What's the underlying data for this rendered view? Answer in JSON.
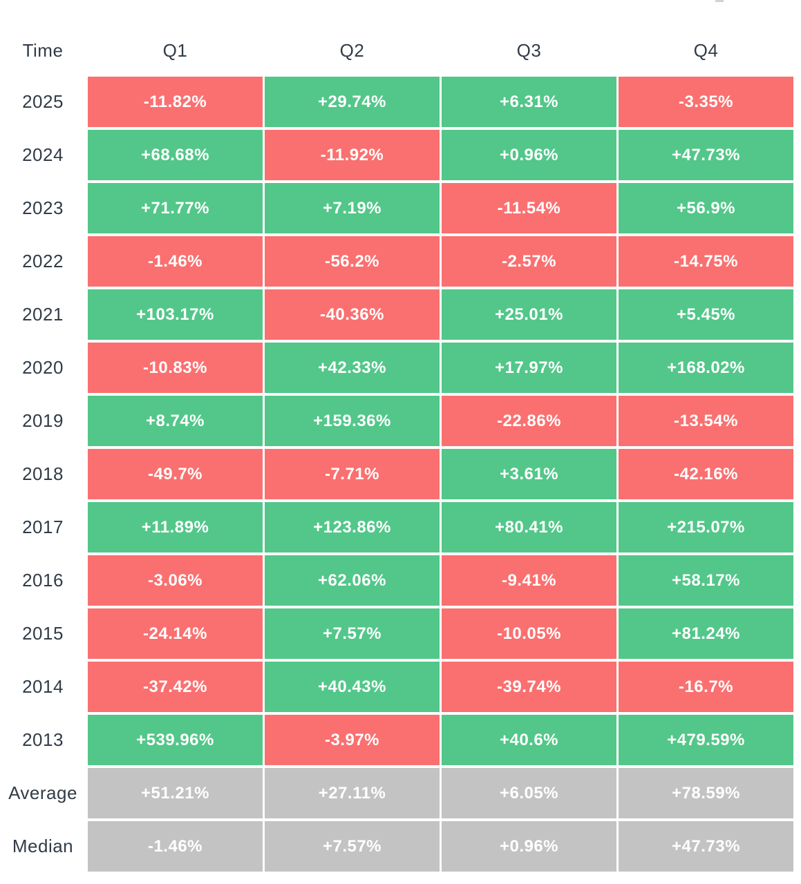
{
  "table": {
    "header": {
      "time": "Time",
      "quarters": [
        "Q1",
        "Q2",
        "Q3",
        "Q4"
      ]
    },
    "rows": [
      {
        "label": "2025",
        "type": "year",
        "values": [
          "-11.82%",
          "+29.74%",
          "+6.31%",
          "-3.35%"
        ]
      },
      {
        "label": "2024",
        "type": "year",
        "values": [
          "+68.68%",
          "-11.92%",
          "+0.96%",
          "+47.73%"
        ]
      },
      {
        "label": "2023",
        "type": "year",
        "values": [
          "+71.77%",
          "+7.19%",
          "-11.54%",
          "+56.9%"
        ]
      },
      {
        "label": "2022",
        "type": "year",
        "values": [
          "-1.46%",
          "-56.2%",
          "-2.57%",
          "-14.75%"
        ]
      },
      {
        "label": "2021",
        "type": "year",
        "values": [
          "+103.17%",
          "-40.36%",
          "+25.01%",
          "+5.45%"
        ]
      },
      {
        "label": "2020",
        "type": "year",
        "values": [
          "-10.83%",
          "+42.33%",
          "+17.97%",
          "+168.02%"
        ]
      },
      {
        "label": "2019",
        "type": "year",
        "values": [
          "+8.74%",
          "+159.36%",
          "-22.86%",
          "-13.54%"
        ]
      },
      {
        "label": "2018",
        "type": "year",
        "values": [
          "-49.7%",
          "-7.71%",
          "+3.61%",
          "-42.16%"
        ]
      },
      {
        "label": "2017",
        "type": "year",
        "values": [
          "+11.89%",
          "+123.86%",
          "+80.41%",
          "+215.07%"
        ]
      },
      {
        "label": "2016",
        "type": "year",
        "values": [
          "-3.06%",
          "+62.06%",
          "-9.41%",
          "+58.17%"
        ]
      },
      {
        "label": "2015",
        "type": "year",
        "values": [
          "-24.14%",
          "+7.57%",
          "-10.05%",
          "+81.24%"
        ]
      },
      {
        "label": "2014",
        "type": "year",
        "values": [
          "-37.42%",
          "+40.43%",
          "-39.74%",
          "-16.7%"
        ]
      },
      {
        "label": "2013",
        "type": "year",
        "values": [
          "+539.96%",
          "-3.97%",
          "+40.6%",
          "+479.59%"
        ]
      },
      {
        "label": "Average",
        "type": "summary",
        "values": [
          "+51.21%",
          "+27.11%",
          "+6.05%",
          "+78.59%"
        ]
      },
      {
        "label": "Median",
        "type": "summary",
        "values": [
          "-1.46%",
          "+7.57%",
          "+0.96%",
          "+47.73%"
        ]
      }
    ],
    "colors": {
      "positive": "#52C789",
      "negative": "#FA7070",
      "summary": "#C3C3C3",
      "label_text": "#313B47",
      "value_text": "#FFFFFF"
    }
  },
  "chart_data": {
    "type": "heatmap",
    "columns": [
      "Q1",
      "Q2",
      "Q3",
      "Q4"
    ],
    "rows": [
      "2025",
      "2024",
      "2023",
      "2022",
      "2021",
      "2020",
      "2019",
      "2018",
      "2017",
      "2016",
      "2015",
      "2014",
      "2013",
      "Average",
      "Median"
    ],
    "values": [
      [
        -11.82,
        29.74,
        6.31,
        -3.35
      ],
      [
        68.68,
        -11.92,
        0.96,
        47.73
      ],
      [
        71.77,
        7.19,
        -11.54,
        56.9
      ],
      [
        -1.46,
        -56.2,
        -2.57,
        -14.75
      ],
      [
        103.17,
        -40.36,
        25.01,
        5.45
      ],
      [
        -10.83,
        42.33,
        17.97,
        168.02
      ],
      [
        8.74,
        159.36,
        -22.86,
        -13.54
      ],
      [
        -49.7,
        -7.71,
        3.61,
        -42.16
      ],
      [
        11.89,
        123.86,
        80.41,
        215.07
      ],
      [
        -3.06,
        62.06,
        -9.41,
        58.17
      ],
      [
        -24.14,
        7.57,
        -10.05,
        81.24
      ],
      [
        -37.42,
        40.43,
        -39.74,
        -16.7
      ],
      [
        539.96,
        -3.97,
        40.6,
        479.59
      ],
      [
        51.21,
        27.11,
        6.05,
        78.59
      ],
      [
        -1.46,
        7.57,
        0.96,
        47.73
      ]
    ],
    "unit": "%",
    "legend": "green = positive return, red = negative return, gray = summary (Average/Median) rows",
    "corner_label": "Time"
  }
}
